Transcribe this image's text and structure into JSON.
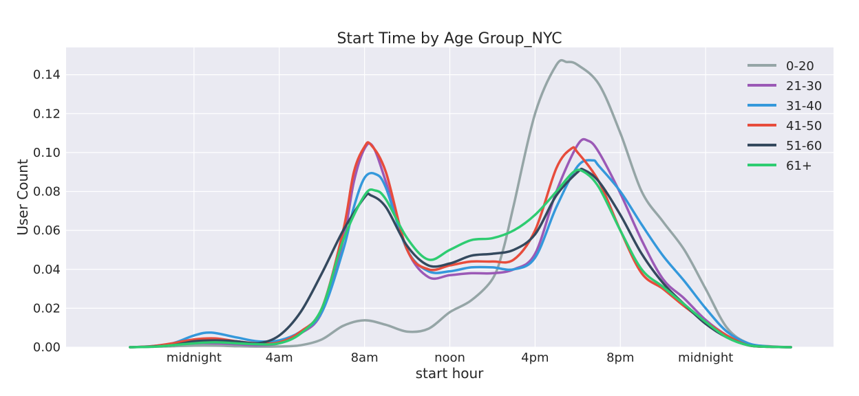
{
  "chart_data": {
    "type": "line",
    "title": "Start Time by Age Group_NYC",
    "xlabel": "start hour",
    "ylabel": "User Count",
    "xlim": [
      -6,
      30
    ],
    "ylim": [
      0,
      0.154
    ],
    "x_ticks": [
      0,
      4,
      8,
      12,
      16,
      20,
      24
    ],
    "x_tick_labels": [
      "midnight",
      "4am",
      "8am",
      "noon",
      "4pm",
      "8pm",
      "midnight"
    ],
    "y_ticks": [
      0.0,
      0.02,
      0.04,
      0.06,
      0.08,
      0.1,
      0.12,
      0.14
    ],
    "y_tick_labels": [
      "0.00",
      "0.02",
      "0.04",
      "0.06",
      "0.08",
      "0.10",
      "0.12",
      "0.14"
    ],
    "grid": true,
    "legend_position": "top-right",
    "background": "#eaeaf2",
    "series": [
      {
        "name": "0-20",
        "color": "#95a5a6",
        "points": [
          [
            -3,
            0
          ],
          [
            -2,
            0.0002
          ],
          [
            -1,
            0.0005
          ],
          [
            0,
            0.0008
          ],
          [
            1,
            0.0008
          ],
          [
            2,
            0.0005
          ],
          [
            3,
            0.0003
          ],
          [
            4,
            0.0004
          ],
          [
            5,
            0.001
          ],
          [
            6,
            0.004
          ],
          [
            7,
            0.011
          ],
          [
            8,
            0.0138
          ],
          [
            9,
            0.0115
          ],
          [
            10,
            0.008
          ],
          [
            11,
            0.0095
          ],
          [
            12,
            0.018
          ],
          [
            13,
            0.024
          ],
          [
            14,
            0.035
          ],
          [
            14.5,
            0.05
          ],
          [
            15,
            0.073
          ],
          [
            16,
            0.12
          ],
          [
            17,
            0.145
          ],
          [
            17.5,
            0.1465
          ],
          [
            18,
            0.145
          ],
          [
            19,
            0.135
          ],
          [
            20,
            0.11
          ],
          [
            21,
            0.08
          ],
          [
            22,
            0.0645
          ],
          [
            23,
            0.05
          ],
          [
            24,
            0.03
          ],
          [
            25,
            0.01
          ],
          [
            26,
            0.002
          ],
          [
            27,
            0.0005
          ],
          [
            28,
            0
          ]
        ]
      },
      {
        "name": "21-30",
        "color": "#9b59b6",
        "points": [
          [
            -3,
            0
          ],
          [
            -2,
            0.0003
          ],
          [
            -1,
            0.001
          ],
          [
            0,
            0.002
          ],
          [
            1,
            0.002
          ],
          [
            2,
            0.0015
          ],
          [
            3,
            0.001
          ],
          [
            4,
            0.002
          ],
          [
            5,
            0.007
          ],
          [
            6,
            0.018
          ],
          [
            7,
            0.055
          ],
          [
            7.5,
            0.085
          ],
          [
            8,
            0.102
          ],
          [
            8.4,
            0.103
          ],
          [
            9,
            0.085
          ],
          [
            10,
            0.05
          ],
          [
            11,
            0.036
          ],
          [
            12,
            0.037
          ],
          [
            13,
            0.038
          ],
          [
            14,
            0.038
          ],
          [
            15,
            0.04
          ],
          [
            16,
            0.048
          ],
          [
            17,
            0.08
          ],
          [
            18,
            0.104
          ],
          [
            18.5,
            0.106
          ],
          [
            19,
            0.1
          ],
          [
            20,
            0.079
          ],
          [
            21,
            0.055
          ],
          [
            22,
            0.035
          ],
          [
            23,
            0.025
          ],
          [
            24,
            0.014
          ],
          [
            25,
            0.006
          ],
          [
            26,
            0.001
          ],
          [
            27,
            0.0003
          ],
          [
            28,
            0
          ]
        ]
      },
      {
        "name": "31-40",
        "color": "#3498db",
        "points": [
          [
            -3,
            0
          ],
          [
            -2,
            0.0005
          ],
          [
            -1,
            0.002
          ],
          [
            0,
            0.006
          ],
          [
            0.8,
            0.0075
          ],
          [
            2,
            0.005
          ],
          [
            3,
            0.003
          ],
          [
            4,
            0.0035
          ],
          [
            5,
            0.008
          ],
          [
            6,
            0.018
          ],
          [
            7,
            0.05
          ],
          [
            7.5,
            0.072
          ],
          [
            8,
            0.087
          ],
          [
            8.5,
            0.089
          ],
          [
            9,
            0.082
          ],
          [
            10,
            0.05
          ],
          [
            11,
            0.039
          ],
          [
            12,
            0.039
          ],
          [
            13,
            0.041
          ],
          [
            14,
            0.041
          ],
          [
            15,
            0.04
          ],
          [
            16,
            0.046
          ],
          [
            17,
            0.072
          ],
          [
            18,
            0.093
          ],
          [
            18.7,
            0.096
          ],
          [
            19,
            0.093
          ],
          [
            20,
            0.08
          ],
          [
            21,
            0.063
          ],
          [
            22,
            0.047
          ],
          [
            23,
            0.034
          ],
          [
            24,
            0.02
          ],
          [
            25,
            0.008
          ],
          [
            26,
            0.002
          ],
          [
            27,
            0.0003
          ],
          [
            28,
            0
          ]
        ]
      },
      {
        "name": "41-50",
        "color": "#e74c3c",
        "points": [
          [
            -3,
            0
          ],
          [
            -2,
            0.0005
          ],
          [
            -1,
            0.002
          ],
          [
            0,
            0.004
          ],
          [
            1,
            0.0045
          ],
          [
            2,
            0.003
          ],
          [
            3,
            0.002
          ],
          [
            4,
            0.0025
          ],
          [
            5,
            0.008
          ],
          [
            6,
            0.02
          ],
          [
            7,
            0.06
          ],
          [
            7.5,
            0.09
          ],
          [
            8,
            0.103
          ],
          [
            8.3,
            0.104
          ],
          [
            9,
            0.09
          ],
          [
            10,
            0.05
          ],
          [
            11,
            0.04
          ],
          [
            12,
            0.042
          ],
          [
            13,
            0.044
          ],
          [
            14,
            0.044
          ],
          [
            15,
            0.045
          ],
          [
            16,
            0.06
          ],
          [
            17,
            0.092
          ],
          [
            17.7,
            0.102
          ],
          [
            18,
            0.1
          ],
          [
            19,
            0.085
          ],
          [
            20,
            0.06
          ],
          [
            21,
            0.038
          ],
          [
            22,
            0.03
          ],
          [
            23,
            0.021
          ],
          [
            24,
            0.013
          ],
          [
            25,
            0.006
          ],
          [
            26,
            0.001
          ],
          [
            27,
            0.0002
          ],
          [
            28,
            0
          ]
        ]
      },
      {
        "name": "51-60",
        "color": "#34495e",
        "points": [
          [
            -3,
            0
          ],
          [
            -2,
            0.0003
          ],
          [
            -1,
            0.001
          ],
          [
            0,
            0.003
          ],
          [
            1,
            0.0035
          ],
          [
            2,
            0.003
          ],
          [
            3,
            0.002
          ],
          [
            4,
            0.006
          ],
          [
            5,
            0.018
          ],
          [
            6,
            0.038
          ],
          [
            7,
            0.06
          ],
          [
            8,
            0.077
          ],
          [
            8.3,
            0.078
          ],
          [
            9,
            0.072
          ],
          [
            10,
            0.052
          ],
          [
            11,
            0.042
          ],
          [
            12,
            0.043
          ],
          [
            13,
            0.047
          ],
          [
            14,
            0.048
          ],
          [
            15,
            0.05
          ],
          [
            16,
            0.058
          ],
          [
            17,
            0.078
          ],
          [
            18,
            0.09
          ],
          [
            18.3,
            0.091
          ],
          [
            19,
            0.085
          ],
          [
            20,
            0.068
          ],
          [
            21,
            0.048
          ],
          [
            22,
            0.033
          ],
          [
            23,
            0.022
          ],
          [
            24,
            0.012
          ],
          [
            25,
            0.005
          ],
          [
            26,
            0.001
          ],
          [
            27,
            0.0002
          ],
          [
            28,
            0
          ]
        ]
      },
      {
        "name": "61+",
        "color": "#2ecc71",
        "points": [
          [
            -3,
            0
          ],
          [
            -2,
            0.0002
          ],
          [
            -1,
            0.001
          ],
          [
            0,
            0.002
          ],
          [
            1,
            0.0025
          ],
          [
            2,
            0.002
          ],
          [
            3,
            0.0015
          ],
          [
            4,
            0.002
          ],
          [
            5,
            0.007
          ],
          [
            6,
            0.02
          ],
          [
            7,
            0.055
          ],
          [
            8,
            0.078
          ],
          [
            8.5,
            0.0805
          ],
          [
            9,
            0.076
          ],
          [
            10,
            0.056
          ],
          [
            11,
            0.045
          ],
          [
            12,
            0.05
          ],
          [
            13,
            0.055
          ],
          [
            14,
            0.056
          ],
          [
            15,
            0.06
          ],
          [
            16,
            0.068
          ],
          [
            17,
            0.08
          ],
          [
            17.8,
            0.09
          ],
          [
            18.3,
            0.09
          ],
          [
            19,
            0.082
          ],
          [
            20,
            0.06
          ],
          [
            21,
            0.04
          ],
          [
            22,
            0.031
          ],
          [
            23,
            0.022
          ],
          [
            24,
            0.013
          ],
          [
            25,
            0.005
          ],
          [
            26,
            0.001
          ],
          [
            27,
            0.0002
          ],
          [
            28,
            0
          ]
        ]
      }
    ]
  }
}
